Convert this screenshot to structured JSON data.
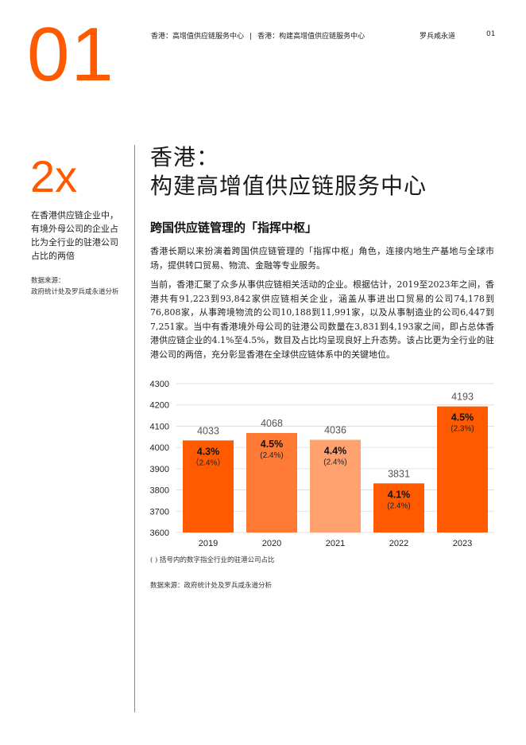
{
  "page": {
    "big_number": "01",
    "header": {
      "section1": "香港：高增值供应链服务中心",
      "separator": "|",
      "section2": "香港：构建高增值供应链服务中心",
      "brand": "罗兵咸永道",
      "page_number": "01"
    }
  },
  "sidebar": {
    "stat_value": "2x",
    "stat_description": "在香港供应链企业中，有境外母公司的企业占比为全行业的驻港公司占比的两倍",
    "source_label": "数据来源：",
    "source_text": "政府统计处及罗兵咸永道分析"
  },
  "main": {
    "title_line1": "香港：",
    "title_line2": "构建高增值供应链服务中心",
    "subheading": "跨国供应链管理的「指挥中枢」",
    "paragraph1": "香港长期以来扮演着跨国供应链管理的「指挥中枢」角色，连接内地生产基地与全球市场，提供转口贸易、物流、金融等专业服务。",
    "paragraph2": "当前，香港汇聚了众多从事供应链相关活动的企业。根据估计，2019至2023年之间，香港共有91,223到93,842家供应链相关企业，涵盖从事进出口贸易的公司74,178到76,808家，从事跨境物流的公司10,188到11,991家，以及从事制造业的公司6,447到7,251家。当中有香港境外母公司的驻港公司数量在3,831到4,193家之间，即占总体香港供应链企业的4.1%至4.5%，数目及占比均呈现良好上升态势。该占比更为全行业的驻港公司的两倍，充分彰显香港在全球供应链体系中的关键地位。",
    "chart_note": "( ) 括号内的数字指全行业的驻港公司占比",
    "chart_source": "数据来源：政府统计处及罗兵咸永道分析"
  },
  "chart_data": {
    "type": "bar",
    "categories": [
      "2019",
      "2020",
      "2021",
      "2022",
      "2023"
    ],
    "values": [
      4033,
      4068,
      4036,
      3831,
      4193
    ],
    "share_labels": [
      "4.3%",
      "4.5%",
      "4.4%",
      "4.1%",
      "4.5%"
    ],
    "industry_share_labels": [
      "（2.4%）",
      "(2.4%)",
      "(2.4%)",
      "(2.4%)",
      "(2.3%)"
    ],
    "bar_colors": [
      "#ff5a00",
      "#ff7a35",
      "#ffa270",
      "#ff5a00",
      "#ff5a00"
    ],
    "ylim": [
      3600,
      4300
    ],
    "yticks": [
      3600,
      3700,
      3800,
      3900,
      4000,
      4100,
      4200,
      4300
    ],
    "title": "",
    "xlabel": "",
    "ylabel": "",
    "grid": true
  }
}
